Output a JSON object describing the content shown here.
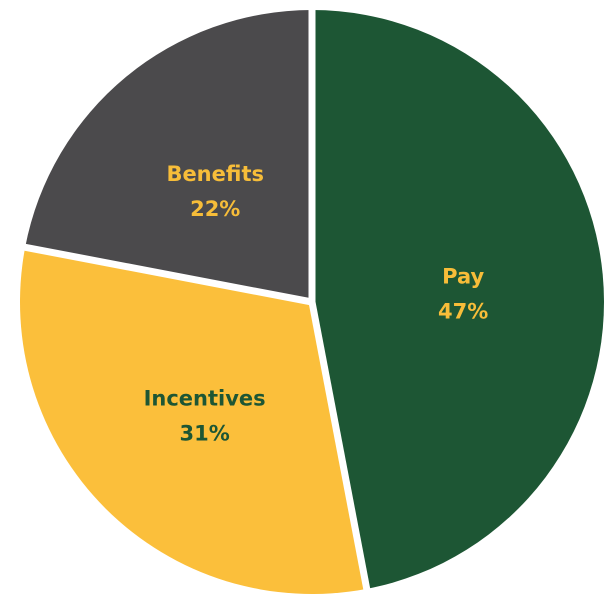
{
  "chart_data": {
    "type": "pie",
    "title": "",
    "slices": [
      {
        "name": "Pay",
        "value": 47,
        "value_label": "47%",
        "color": "#1d5634",
        "label_color": "#f7bd39"
      },
      {
        "name": "Incentives",
        "value": 31,
        "value_label": "31%",
        "color": "#fbbf3b",
        "label_color": "#1d5634"
      },
      {
        "name": "Benefits",
        "value": 22,
        "value_label": "22%",
        "color": "#4b4a4c",
        "label_color": "#f7bd39"
      }
    ],
    "start_angle_deg": 0,
    "direction": "clockwise",
    "slice_separator_color": "#ffffff",
    "legend": "none"
  }
}
